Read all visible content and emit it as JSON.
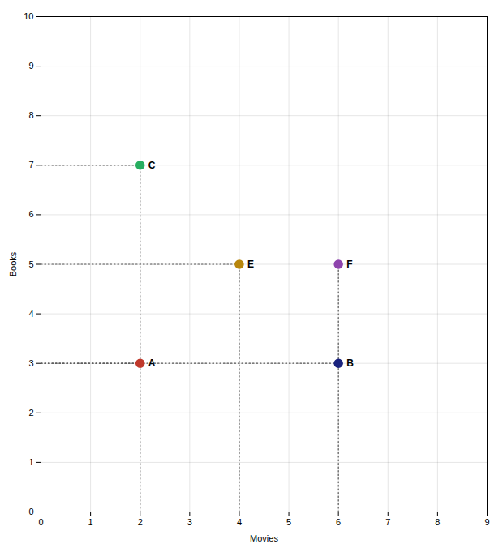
{
  "chart_data": {
    "type": "scatter",
    "xlabel": "Movies",
    "ylabel": "Books",
    "x": [
      2,
      2,
      4,
      6,
      6
    ],
    "values": [
      3,
      7,
      5,
      5,
      3
    ],
    "colors": [
      "#c0392b",
      "#27ae60",
      "#b8860b",
      "#8e44ad",
      "#1a237e"
    ],
    "annotations": [
      {
        "text": "A",
        "x": 2,
        "y": 3
      },
      {
        "text": "C",
        "x": 2,
        "y": 7
      },
      {
        "text": "E",
        "x": 4,
        "y": 5
      },
      {
        "text": "F",
        "x": 6,
        "y": 5
      },
      {
        "text": "B",
        "x": 6,
        "y": 3
      }
    ],
    "guide_lines": {
      "color": "#555555",
      "line_style": "dotted",
      "segments": [
        {
          "x": [
            2,
            2
          ],
          "y": [
            0,
            7
          ]
        },
        {
          "x": [
            0,
            2
          ],
          "y": [
            7,
            7
          ]
        },
        {
          "x": [
            0,
            2
          ],
          "y": [
            3,
            3
          ]
        },
        {
          "x": [
            4,
            4
          ],
          "y": [
            0,
            5
          ]
        },
        {
          "x": [
            0,
            4
          ],
          "y": [
            5,
            5
          ]
        },
        {
          "x": [
            6,
            6
          ],
          "y": [
            0,
            5
          ]
        },
        {
          "x": [
            0,
            6
          ],
          "y": [
            3,
            3
          ]
        }
      ]
    },
    "xlim": [
      0,
      9
    ],
    "ylim": [
      0,
      10
    ],
    "xticks": [
      0,
      1,
      2,
      3,
      4,
      5,
      6,
      7,
      8,
      9
    ],
    "yticks": [
      0,
      1,
      2,
      3,
      4,
      5,
      6,
      7,
      8,
      9,
      10
    ],
    "grid": true
  }
}
